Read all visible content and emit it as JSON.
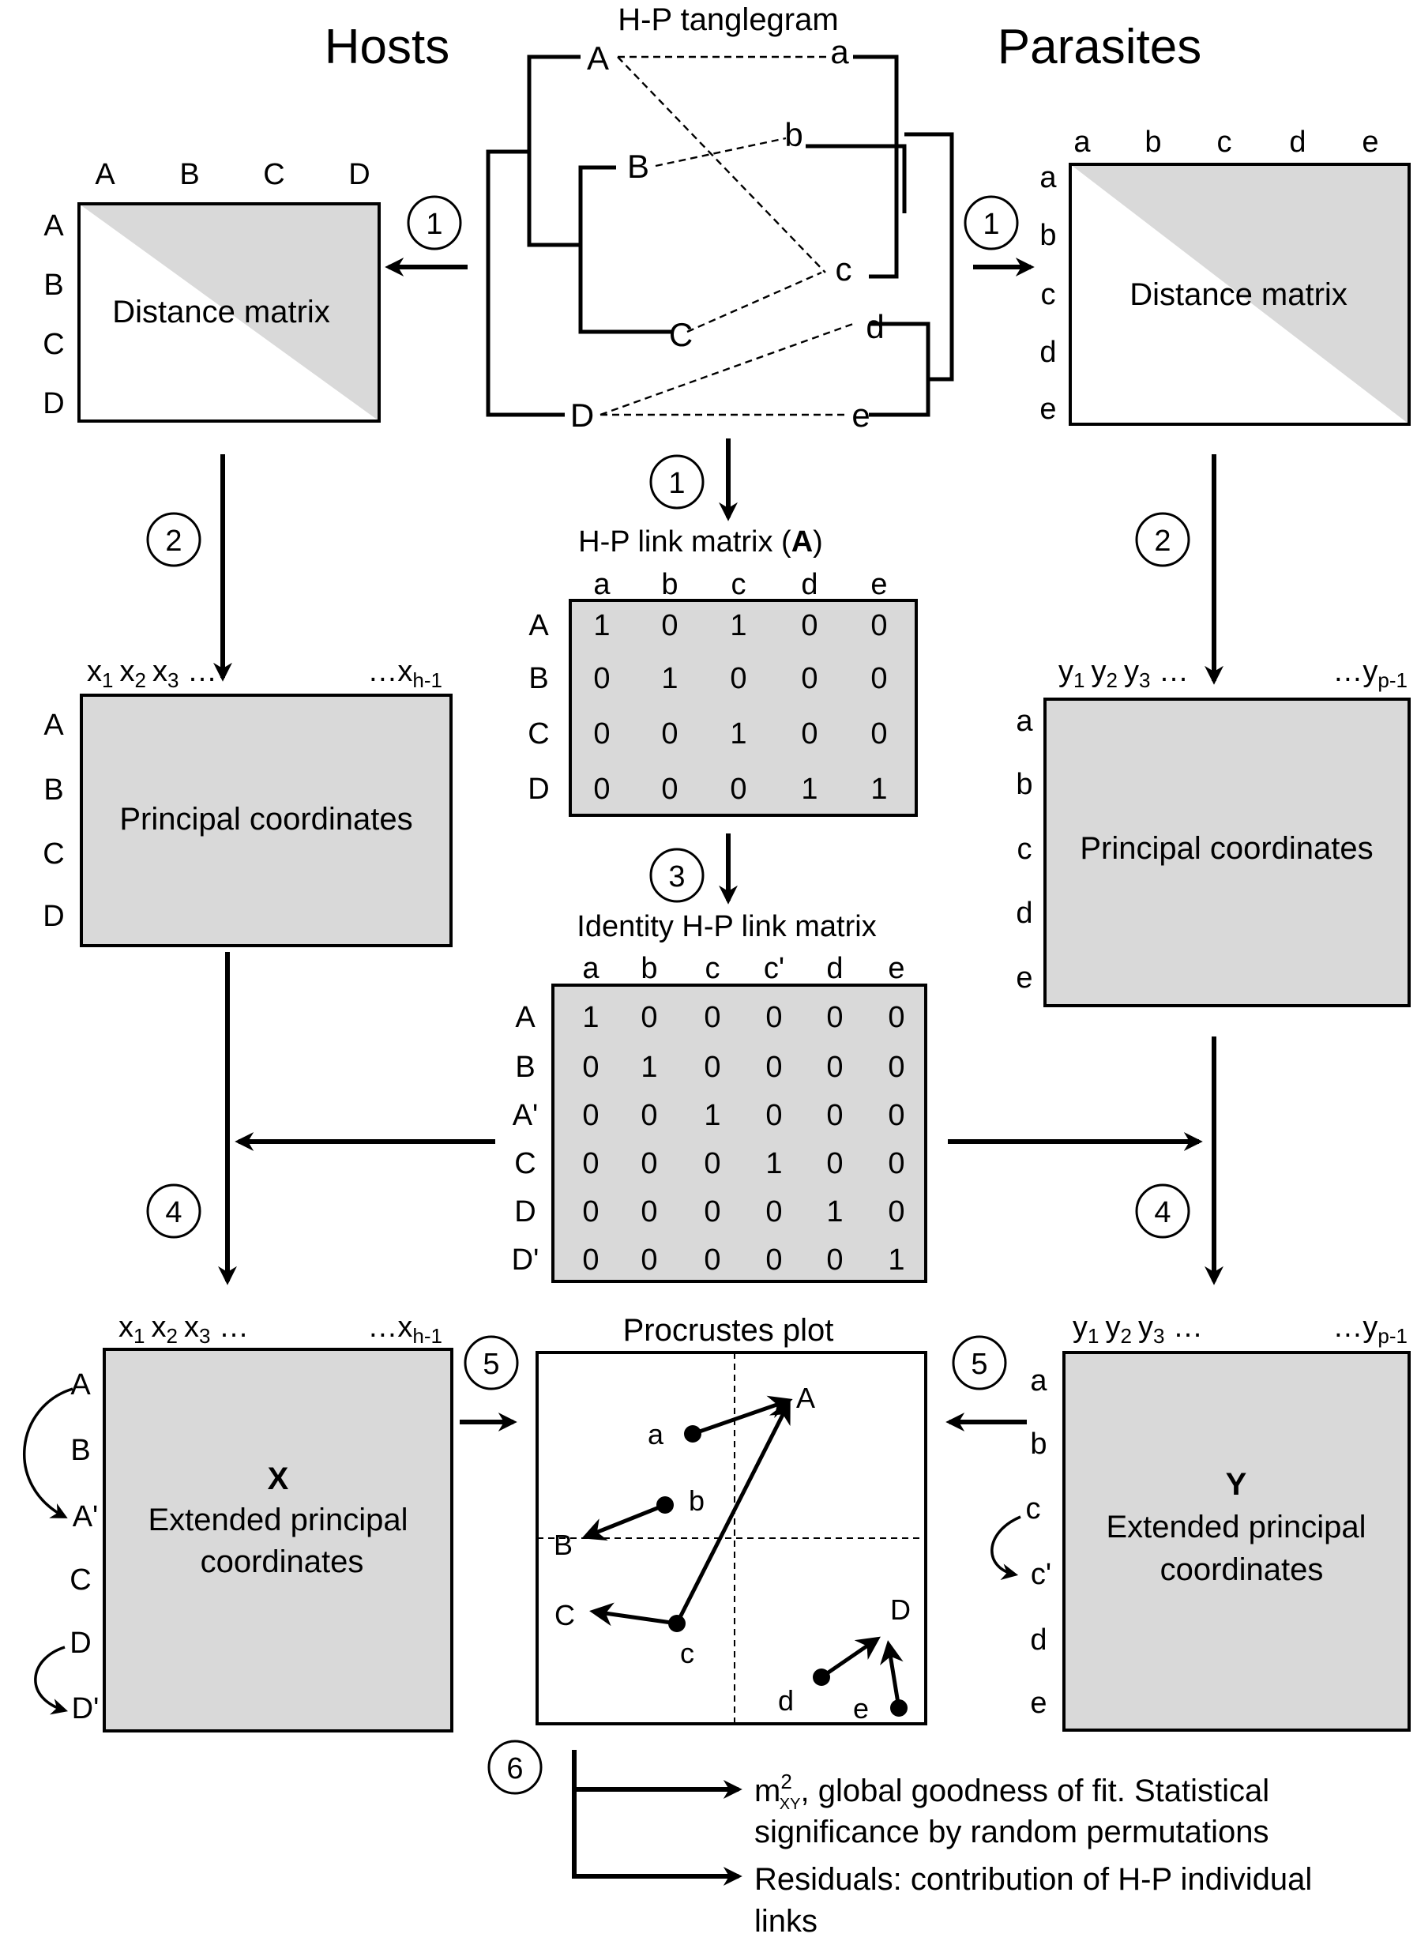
{
  "header": {
    "hosts": "Hosts",
    "parasites": "Parasites",
    "tanglegram_title": "H-P tanglegram"
  },
  "tanglegram": {
    "hosts": [
      "A",
      "B",
      "C",
      "D"
    ],
    "parasites": [
      "a",
      "b",
      "c",
      "d",
      "e"
    ]
  },
  "steps": [
    "1",
    "2",
    "3",
    "4",
    "5",
    "6"
  ],
  "host_distance": {
    "cols": [
      "A",
      "B",
      "C",
      "D"
    ],
    "rows": [
      "A",
      "B",
      "C",
      "D"
    ],
    "label": "Distance matrix"
  },
  "parasite_distance": {
    "cols": [
      "a",
      "b",
      "c",
      "d",
      "e"
    ],
    "rows": [
      "a",
      "b",
      "c",
      "d",
      "e"
    ],
    "label": "Distance matrix"
  },
  "link_matrix": {
    "title_prefix": "H-P link matrix (",
    "title_bold": "A",
    "title_suffix": ")",
    "cols": [
      "a",
      "b",
      "c",
      "d",
      "e"
    ],
    "rows": [
      "A",
      "B",
      "C",
      "D"
    ],
    "values": [
      [
        "1",
        "0",
        "1",
        "0",
        "0"
      ],
      [
        "0",
        "1",
        "0",
        "0",
        "0"
      ],
      [
        "0",
        "0",
        "1",
        "0",
        "0"
      ],
      [
        "0",
        "0",
        "0",
        "1",
        "1"
      ]
    ]
  },
  "identity_matrix": {
    "title": "Identity H-P link matrix",
    "cols": [
      "a",
      "b",
      "c",
      "c'",
      "d",
      "e"
    ],
    "rows": [
      "A",
      "B",
      "A'",
      "C",
      "D",
      "D'"
    ],
    "values": [
      [
        "1",
        "0",
        "0",
        "0",
        "0",
        "0"
      ],
      [
        "0",
        "1",
        "0",
        "0",
        "0",
        "0"
      ],
      [
        "0",
        "0",
        "1",
        "0",
        "0",
        "0"
      ],
      [
        "0",
        "0",
        "0",
        "1",
        "0",
        "0"
      ],
      [
        "0",
        "0",
        "0",
        "0",
        "1",
        "0"
      ],
      [
        "0",
        "0",
        "0",
        "0",
        "0",
        "1"
      ]
    ]
  },
  "host_pcoa": {
    "col_head": [
      "x",
      "1",
      "x",
      "2",
      "x",
      "3",
      " …",
      "…x",
      "h-1"
    ],
    "rows": [
      "A",
      "B",
      "C",
      "D"
    ],
    "label": "Principal coordinates"
  },
  "parasite_pcoa": {
    "col_head": [
      "y",
      "1",
      "y",
      "2",
      "y",
      "3",
      " …",
      "…y",
      "p-1"
    ],
    "rows": [
      "a",
      "b",
      "c",
      "d",
      "e"
    ],
    "label": "Principal coordinates"
  },
  "host_extended": {
    "col_head": [
      "x",
      "1",
      "x",
      "2",
      "x",
      "3",
      " …",
      "…x",
      "h-1"
    ],
    "rows": [
      "A",
      "B",
      "A'",
      "C",
      "D",
      "D'"
    ],
    "symbol": "X",
    "label_1": "Extended principal",
    "label_2": "coordinates"
  },
  "parasite_extended": {
    "col_head": [
      "y",
      "1",
      "y",
      "2",
      "y",
      "3",
      " …",
      "…y",
      "p-1"
    ],
    "rows": [
      "a",
      "b",
      "c",
      "c'",
      "d",
      "e"
    ],
    "symbol": "Y",
    "label_1": "Extended principal",
    "label_2": "coordinates"
  },
  "procrustes": {
    "title": "Procrustes plot",
    "host_points": [
      "A",
      "B",
      "C",
      "D"
    ],
    "parasite_points": [
      "a",
      "b",
      "c",
      "d",
      "e"
    ]
  },
  "outputs": {
    "m": "m",
    "m_sup": "2",
    "m_sub": "XY",
    "line1": ", global goodness of fit. Statistical",
    "line2": "significance by random permutations",
    "line3": "Residuals: contribution of H-P individual",
    "line4": "links"
  }
}
